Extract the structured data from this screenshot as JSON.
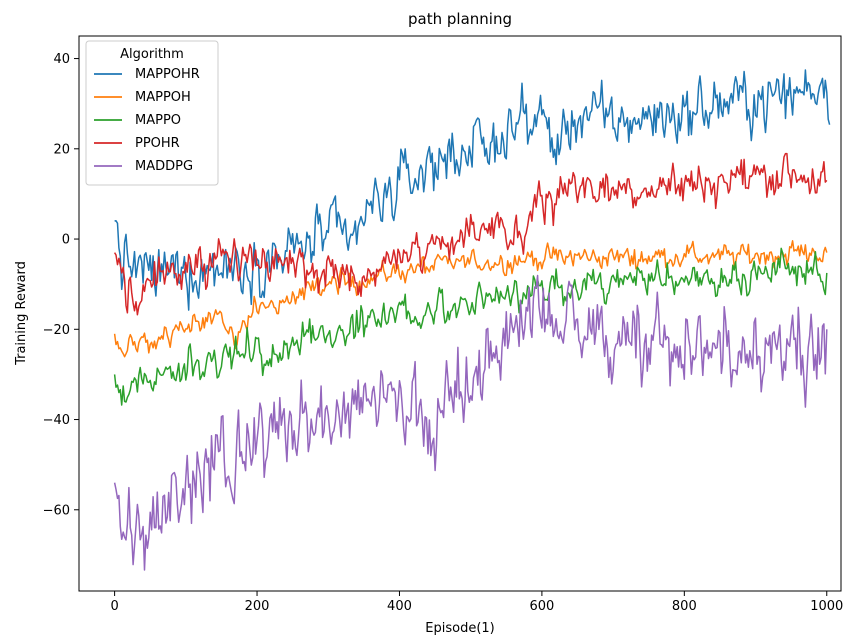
{
  "chart_data": {
    "type": "line",
    "title": "path planning",
    "xlabel": "Episode(1)",
    "ylabel": "Training Reward",
    "xlim": [
      -50,
      1020
    ],
    "ylim": [
      -78,
      45
    ],
    "xticks": [
      0,
      200,
      400,
      600,
      800,
      1000
    ],
    "yticks": [
      -60,
      -40,
      -20,
      0,
      20,
      40
    ],
    "xtick_labels": [
      "0",
      "200",
      "400",
      "600",
      "800",
      "1000"
    ],
    "ytick_labels": [
      "−60",
      "−40",
      "−20",
      "0",
      "20",
      "40"
    ],
    "grid": false,
    "legend": {
      "title": "Algorithm",
      "placement": "top-left"
    },
    "series": [
      {
        "name": "MAPPOHR",
        "color": "#1f77b4",
        "noise": 4,
        "x": [
          0,
          10,
          50,
          100,
          150,
          200,
          250,
          300,
          330,
          350,
          400,
          450,
          500,
          530,
          550,
          600,
          620,
          650,
          700,
          750,
          800,
          850,
          900,
          950,
          1000,
          1005
        ],
        "y": [
          4,
          -5,
          -8,
          -7,
          -6,
          -5,
          -3,
          2,
          -2,
          5,
          12,
          17,
          21,
          19,
          25,
          27,
          20,
          28,
          26,
          27,
          28,
          30,
          31,
          32,
          35,
          27
        ]
      },
      {
        "name": "MAPPOH",
        "color": "#ff7f0e",
        "noise": 1.6,
        "x": [
          0,
          10,
          50,
          100,
          150,
          170,
          200,
          250,
          300,
          350,
          400,
          450,
          500,
          550,
          600,
          650,
          700,
          750,
          800,
          850,
          900,
          950,
          1000
        ],
        "y": [
          -21,
          -25,
          -23,
          -20,
          -17,
          -21,
          -15,
          -13,
          -10,
          -9,
          -7,
          -6,
          -5,
          -5,
          -4,
          -4,
          -4,
          -4,
          -3.5,
          -4,
          -3.5,
          -3,
          -3
        ]
      },
      {
        "name": "MAPPO",
        "color": "#2ca02c",
        "noise": 2.4,
        "x": [
          0,
          10,
          50,
          100,
          150,
          200,
          220,
          250,
          300,
          350,
          400,
          450,
          500,
          550,
          600,
          650,
          700,
          750,
          800,
          850,
          900,
          950,
          1000
        ],
        "y": [
          -30,
          -33,
          -31,
          -29,
          -27,
          -24,
          -28,
          -22,
          -21,
          -18,
          -17,
          -16,
          -14,
          -12,
          -11,
          -10,
          -10,
          -9,
          -9,
          -8,
          -8,
          -7.5,
          -7.5
        ]
      },
      {
        "name": "PPOHR",
        "color": "#d62728",
        "noise": 3,
        "x": [
          0,
          30,
          60,
          100,
          150,
          200,
          250,
          300,
          350,
          400,
          450,
          500,
          550,
          580,
          600,
          650,
          700,
          750,
          800,
          850,
          900,
          950,
          1000
        ],
        "y": [
          -3,
          -14,
          -8,
          -7,
          -5,
          -6,
          -6,
          -7,
          -8,
          -3,
          -1,
          0,
          1,
          2,
          10,
          12,
          11,
          12,
          12,
          13,
          14,
          15,
          13
        ]
      },
      {
        "name": "MADDPG",
        "color": "#9467bd",
        "noise": 6,
        "x": [
          0,
          10,
          50,
          100,
          150,
          200,
          250,
          300,
          350,
          400,
          450,
          500,
          550,
          600,
          650,
          700,
          750,
          800,
          850,
          900,
          950,
          1000
        ],
        "y": [
          -54,
          -65,
          -66,
          -55,
          -50,
          -45,
          -42,
          -40,
          -40,
          -37,
          -42,
          -30,
          -22,
          -18,
          -20,
          -22,
          -20,
          -25,
          -25,
          -22,
          -25,
          -20
        ]
      }
    ]
  }
}
